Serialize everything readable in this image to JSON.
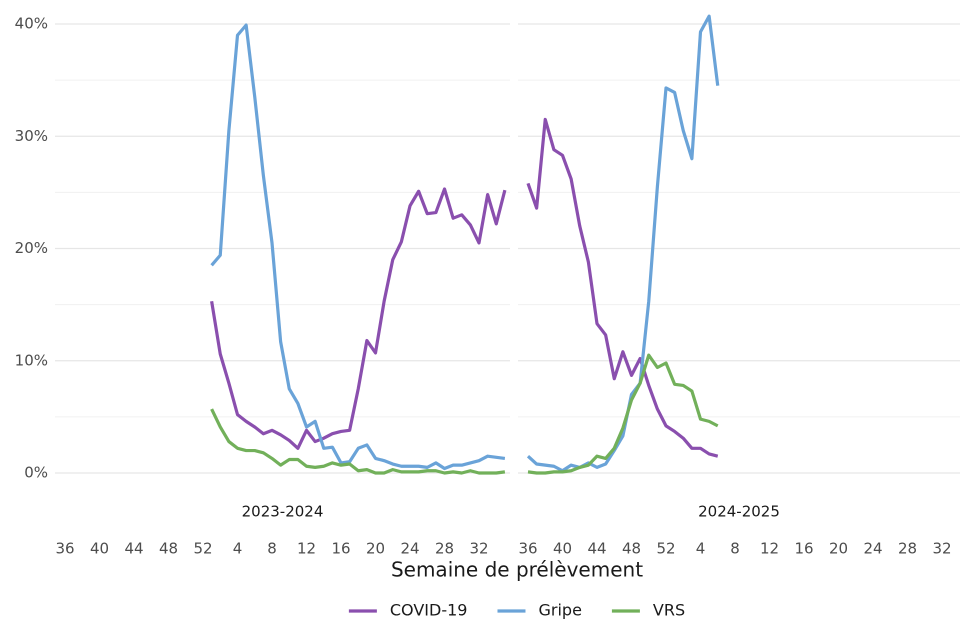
{
  "chart_data": {
    "type": "line",
    "x_label": "Semaine de prélèvement",
    "facets": [
      "2023-2024",
      "2024-2025"
    ],
    "categories": [
      36,
      null,
      null,
      null,
      40,
      null,
      null,
      null,
      44,
      null,
      null,
      null,
      48,
      null,
      null,
      null,
      52,
      null,
      null,
      null,
      4,
      null,
      null,
      null,
      8,
      null,
      null,
      null,
      12,
      null,
      null,
      null,
      16,
      null,
      null,
      null,
      20,
      null,
      null,
      null,
      24,
      null,
      null,
      null,
      28,
      null,
      null,
      null,
      32,
      null,
      null,
      null
    ],
    "ylim": [
      -4,
      41.5
    ],
    "yticks": [
      {
        "value": 0,
        "label": "0%"
      },
      {
        "value": 10,
        "label": "10%"
      },
      {
        "value": 20,
        "label": "20%"
      },
      {
        "value": 30,
        "label": "30%"
      },
      {
        "value": 40,
        "label": "40%"
      }
    ],
    "minor_yticks": [
      5,
      15,
      25,
      35
    ],
    "grid": true,
    "legend": "bottom",
    "series": [
      {
        "name": "COVID-19",
        "color": "#8a4fae",
        "values": [
          [
            null,
            null,
            null,
            null,
            null,
            null,
            null,
            null,
            null,
            null,
            null,
            null,
            null,
            null,
            null,
            null,
            null,
            15.3,
            10.6,
            8.0,
            5.2,
            4.6,
            4.1,
            3.5,
            3.8,
            3.4,
            2.9,
            2.2,
            3.8,
            2.8,
            3.1,
            3.5,
            3.7,
            3.8,
            7.5,
            11.8,
            10.7,
            15.3,
            19.0,
            20.6,
            23.8,
            25.1,
            23.1,
            23.2,
            25.3,
            22.7,
            23.0,
            22.1,
            20.5,
            24.8,
            22.2,
            25.2
          ],
          [
            25.8,
            23.6,
            31.5,
            28.8,
            28.3,
            26.2,
            22.0,
            18.8,
            13.3,
            12.3,
            8.4,
            10.8,
            8.7,
            10.2,
            7.8,
            5.7,
            4.2,
            3.7,
            3.1,
            2.2,
            2.2,
            1.7,
            1.5,
            null,
            null,
            null,
            null,
            null,
            null,
            null,
            null,
            null,
            null,
            null,
            null,
            null,
            null,
            null,
            null,
            null,
            null,
            null,
            null,
            null,
            null,
            null,
            null,
            null,
            null,
            null,
            null,
            null
          ]
        ]
      },
      {
        "name": "Gripe",
        "color": "#6aa3d8",
        "values": [
          [
            null,
            null,
            null,
            null,
            null,
            null,
            null,
            null,
            null,
            null,
            null,
            null,
            null,
            null,
            null,
            null,
            null,
            18.5,
            19.4,
            30.5,
            39.0,
            39.9,
            33.5,
            26.5,
            20.5,
            11.7,
            7.5,
            6.2,
            4.1,
            4.6,
            2.2,
            2.3,
            0.9,
            1.0,
            2.2,
            2.5,
            1.3,
            1.1,
            0.8,
            0.6,
            0.6,
            0.6,
            0.5,
            0.9,
            0.4,
            0.7,
            0.7,
            0.9,
            1.1,
            1.5,
            1.4,
            1.3
          ],
          [
            1.5,
            0.8,
            0.7,
            0.6,
            0.2,
            0.7,
            0.5,
            0.9,
            0.5,
            0.8,
            2.0,
            3.3,
            7.0,
            8.0,
            15.3,
            25.5,
            34.3,
            33.9,
            30.5,
            28.0,
            39.3,
            40.7,
            34.5,
            null,
            null,
            null,
            null,
            null,
            null,
            null,
            null,
            null,
            null,
            null,
            null,
            null,
            null,
            null,
            null,
            null,
            null,
            null,
            null,
            null,
            null,
            null,
            null,
            null,
            null,
            null,
            null,
            null
          ]
        ]
      },
      {
        "name": "VRS",
        "color": "#72b05a",
        "values": [
          [
            null,
            null,
            null,
            null,
            null,
            null,
            null,
            null,
            null,
            null,
            null,
            null,
            null,
            null,
            null,
            null,
            null,
            5.7,
            4.1,
            2.8,
            2.2,
            2.0,
            2.0,
            1.8,
            1.3,
            0.7,
            1.2,
            1.2,
            0.6,
            0.5,
            0.6,
            0.9,
            0.7,
            0.8,
            0.2,
            0.3,
            0.0,
            0.0,
            0.3,
            0.1,
            0.1,
            0.1,
            0.2,
            0.2,
            0.0,
            0.1,
            0.0,
            0.2,
            0.0,
            0.0,
            0.0,
            0.1
          ],
          [
            0.1,
            0.0,
            0.0,
            0.1,
            0.1,
            0.2,
            0.5,
            0.7,
            1.5,
            1.3,
            2.2,
            4.0,
            6.5,
            8.0,
            10.5,
            9.4,
            9.8,
            7.9,
            7.8,
            7.3,
            4.8,
            4.6,
            4.2,
            null,
            null,
            null,
            null,
            null,
            null,
            null,
            null,
            null,
            null,
            null,
            null,
            null,
            null,
            null,
            null,
            null,
            null,
            null,
            null,
            null,
            null,
            null,
            null,
            null,
            null,
            null,
            null,
            null
          ]
        ]
      }
    ]
  }
}
